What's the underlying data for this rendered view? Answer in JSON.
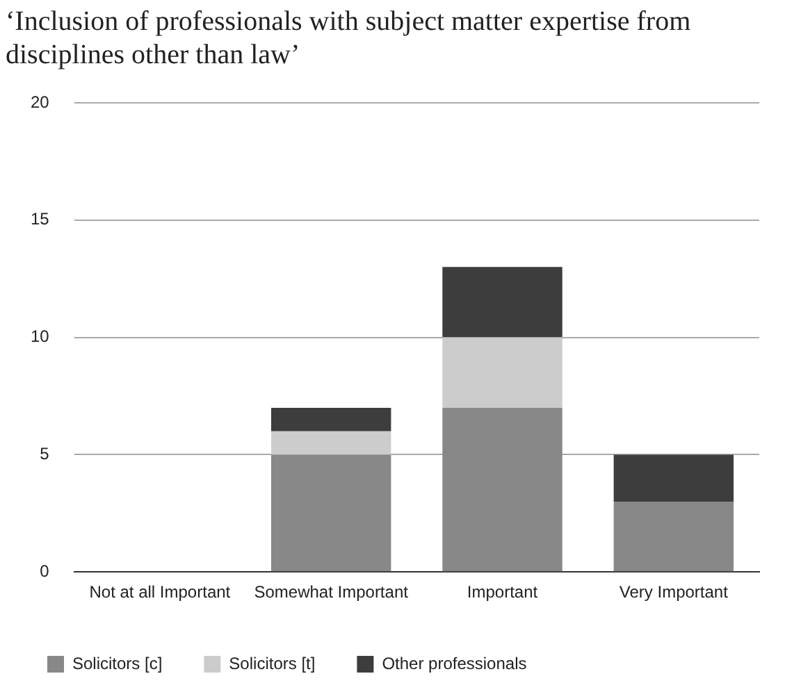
{
  "chart_data": {
    "type": "bar",
    "title": "‘Inclusion of professionals with subject matter expertise from disciplines other than law’",
    "categories": [
      "Not at all Important",
      "Somewhat Important",
      "Important",
      "Very Important"
    ],
    "series": [
      {
        "name": "Solicitors [c]",
        "color": "#888888",
        "values": [
          0,
          5,
          7,
          3
        ]
      },
      {
        "name": "Solicitors [t]",
        "color": "#cccccc",
        "values": [
          0,
          1,
          3,
          0
        ]
      },
      {
        "name": "Other professionals",
        "color": "#3d3d3d",
        "values": [
          0,
          1,
          3,
          2
        ]
      }
    ],
    "stacked": true,
    "ylim": [
      0,
      20
    ],
    "yticks": [
      0,
      5,
      10,
      15,
      20
    ],
    "grid": "y",
    "legend": "bottom left"
  }
}
